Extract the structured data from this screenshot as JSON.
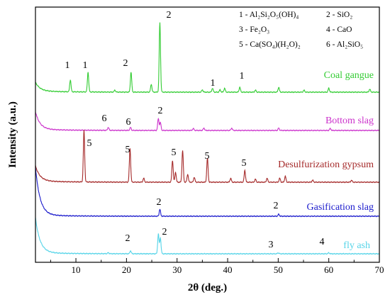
{
  "chart_data": {
    "type": "line",
    "xlabel": "2θ (deg.)",
    "ylabel": "Intensity (a.u.)",
    "xlim": [
      2,
      70
    ],
    "xticks": [
      10,
      20,
      30,
      40,
      50,
      60,
      70
    ],
    "legend_placement": "top-right",
    "legend": [
      {
        "key": "1",
        "text": "Al2Si2O5(OH)4",
        "display": "1 - Al₂Si₂O₅(OH)₄"
      },
      {
        "key": "2",
        "text": "SiO2",
        "display": "2 - SiO₂"
      },
      {
        "key": "3",
        "text": "Fe2O3",
        "display": "3 - Fe₂O₃"
      },
      {
        "key": "4",
        "text": "CaO",
        "display": "4 - CaO"
      },
      {
        "key": "5",
        "text": "Ca(SO4)(H2O)2",
        "display": "5 - Ca(SO₄)(H₂O)₂"
      },
      {
        "key": "6",
        "text": "Al2SiO5",
        "display": "6 - Al₂SiO₅"
      }
    ],
    "series": [
      {
        "name": "Coal gangue",
        "color": "#33cc33",
        "baseline": 0.2,
        "peaks": [
          [
            8.9,
            0.6
          ],
          [
            12.4,
            1.0
          ],
          [
            17.7,
            0.1
          ],
          [
            20.9,
            1.0
          ],
          [
            24.9,
            0.4
          ],
          [
            26.6,
            3.5
          ],
          [
            35.0,
            0.12
          ],
          [
            37.0,
            0.2
          ],
          [
            38.5,
            0.12
          ],
          [
            39.4,
            0.2
          ],
          [
            42.4,
            0.25
          ],
          [
            45.5,
            0.1
          ],
          [
            50.1,
            0.25
          ],
          [
            55.1,
            0.1
          ],
          [
            60.0,
            0.2
          ],
          [
            68.1,
            0.15
          ]
        ],
        "labels": [
          {
            "text": "1",
            "x": 8.9
          },
          {
            "text": "1",
            "x": 12.4
          },
          {
            "text": "2",
            "x": 20.9
          },
          {
            "text": "2",
            "x": 26.6
          },
          {
            "text": "1",
            "x": 37.0
          },
          {
            "text": "1",
            "x": 43.2
          }
        ]
      },
      {
        "name": "Bottom slag",
        "color": "#cc33cc",
        "baseline": 0.4,
        "peaks": [
          [
            16.4,
            0.15
          ],
          [
            20.8,
            0.15
          ],
          [
            26.3,
            0.6
          ],
          [
            26.7,
            0.4
          ],
          [
            33.2,
            0.1
          ],
          [
            35.3,
            0.12
          ],
          [
            40.8,
            0.12
          ],
          [
            50.1,
            0.12
          ],
          [
            60.3,
            0.1
          ]
        ],
        "labels": [
          {
            "text": "6",
            "x": 16.4
          },
          {
            "text": "6",
            "x": 20.8
          },
          {
            "text": "2",
            "x": 26.5
          }
        ]
      },
      {
        "name": "Desulfurization gypsum",
        "color": "#a52a2a",
        "baseline": 0.35,
        "peaks": [
          [
            11.6,
            2.6
          ],
          [
            20.7,
            1.7
          ],
          [
            23.4,
            0.2
          ],
          [
            29.1,
            1.1
          ],
          [
            29.7,
            0.5
          ],
          [
            31.1,
            1.6
          ],
          [
            32.1,
            0.4
          ],
          [
            33.4,
            0.25
          ],
          [
            36.0,
            1.2
          ],
          [
            40.6,
            0.2
          ],
          [
            43.4,
            0.6
          ],
          [
            45.5,
            0.15
          ],
          [
            47.8,
            0.2
          ],
          [
            50.3,
            0.2
          ],
          [
            51.4,
            0.3
          ],
          [
            56.8,
            0.1
          ],
          [
            64.5,
            0.1
          ]
        ],
        "labels": [
          {
            "text": "5",
            "x": 12.4
          },
          {
            "text": "5",
            "x": 20.7
          },
          {
            "text": "5",
            "x": 29.3
          },
          {
            "text": "5",
            "x": 36.0
          },
          {
            "text": "5",
            "x": 43.4
          }
        ]
      },
      {
        "name": "Gasification slag",
        "color": "#1a1acc",
        "baseline": 1.1,
        "peaks": [
          [
            26.6,
            0.35
          ],
          [
            50.1,
            0.1
          ]
        ],
        "labels": [
          {
            "text": "2",
            "x": 26.6
          },
          {
            "text": "2",
            "x": 50.1
          }
        ]
      },
      {
        "name": "fly ash",
        "color": "#55d4e8",
        "baseline": 0.8,
        "peaks": [
          [
            16.4,
            0.05
          ],
          [
            20.8,
            0.15
          ],
          [
            26.3,
            1.0
          ],
          [
            26.7,
            0.8
          ],
          [
            50.0,
            0.05
          ],
          [
            60.0,
            0.05
          ]
        ],
        "labels": [
          {
            "text": "2",
            "x": 20.8
          },
          {
            "text": "2",
            "x": 27.3
          },
          {
            "text": "3",
            "x": 49.3
          },
          {
            "text": "4",
            "x": 59.5
          }
        ]
      }
    ]
  }
}
